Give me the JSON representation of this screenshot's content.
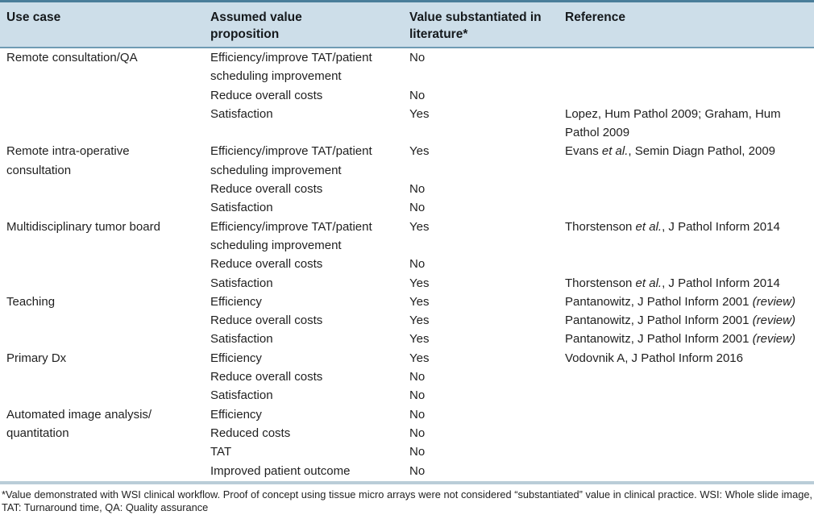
{
  "table": {
    "headers": {
      "use_case": "Use case",
      "proposition": "Assumed value proposition",
      "substantiated": "Value substantiated in literature*",
      "reference": "Reference"
    },
    "groups": [
      {
        "use_case": "Remote consultation/QA",
        "rows": [
          {
            "proposition": "Efficiency/improve TAT/patient\nscheduling improvement",
            "substantiated": "No",
            "reference": []
          },
          {
            "proposition": "Reduce overall costs",
            "substantiated": "No",
            "reference": []
          },
          {
            "proposition": "Satisfaction",
            "substantiated": "Yes",
            "reference": [
              {
                "t": "Lopez, Hum Pathol 2009; Graham, Hum\nPathol 2009",
                "i": false
              }
            ]
          }
        ]
      },
      {
        "use_case": "Remote intra-operative\nconsultation",
        "rows": [
          {
            "proposition": "Efficiency/improve TAT/patient\nscheduling improvement",
            "substantiated": "Yes",
            "reference": [
              {
                "t": "Evans ",
                "i": false
              },
              {
                "t": "et al.",
                "i": true
              },
              {
                "t": ", Semin Diagn Pathol, 2009",
                "i": false
              }
            ]
          },
          {
            "proposition": "Reduce overall costs",
            "substantiated": "No",
            "reference": []
          },
          {
            "proposition": "Satisfaction",
            "substantiated": "No",
            "reference": []
          }
        ]
      },
      {
        "use_case": "Multidisciplinary tumor board",
        "rows": [
          {
            "proposition": "Efficiency/improve TAT/patient\nscheduling improvement",
            "substantiated": "Yes",
            "reference": [
              {
                "t": "Thorstenson ",
                "i": false
              },
              {
                "t": "et al.",
                "i": true
              },
              {
                "t": ", J Pathol Inform 2014",
                "i": false
              }
            ]
          },
          {
            "proposition": "Reduce overall costs",
            "substantiated": "No",
            "reference": []
          },
          {
            "proposition": "Satisfaction",
            "substantiated": "Yes",
            "reference": [
              {
                "t": "Thorstenson ",
                "i": false
              },
              {
                "t": "et al.",
                "i": true
              },
              {
                "t": ", J Pathol Inform 2014",
                "i": false
              }
            ]
          }
        ]
      },
      {
        "use_case": "Teaching",
        "rows": [
          {
            "proposition": "Efficiency",
            "substantiated": "Yes",
            "reference": [
              {
                "t": "Pantanowitz, J Pathol Inform 2001 ",
                "i": false
              },
              {
                "t": "(review)",
                "i": true
              }
            ]
          },
          {
            "proposition": "Reduce overall costs",
            "substantiated": "Yes",
            "reference": [
              {
                "t": "Pantanowitz, J Pathol Inform 2001 ",
                "i": false
              },
              {
                "t": "(review)",
                "i": true
              }
            ]
          },
          {
            "proposition": "Satisfaction",
            "substantiated": "Yes",
            "reference": [
              {
                "t": "Pantanowitz, J Pathol Inform 2001 ",
                "i": false
              },
              {
                "t": "(review)",
                "i": true
              }
            ]
          }
        ]
      },
      {
        "use_case": "Primary Dx",
        "rows": [
          {
            "proposition": "Efficiency",
            "substantiated": "Yes",
            "reference": [
              {
                "t": "Vodovnik A, J Pathol Inform 2016",
                "i": false
              }
            ]
          },
          {
            "proposition": "Reduce overall costs",
            "substantiated": "No",
            "reference": []
          },
          {
            "proposition": "Satisfaction",
            "substantiated": "No",
            "reference": []
          }
        ]
      },
      {
        "use_case": "Automated image analysis/\nquantitation",
        "rows": [
          {
            "proposition": "Efficiency",
            "substantiated": "No",
            "reference": []
          },
          {
            "proposition": "Reduced costs",
            "substantiated": "No",
            "reference": []
          },
          {
            "proposition": "TAT",
            "substantiated": "No",
            "reference": []
          },
          {
            "proposition": "Improved patient outcome",
            "substantiated": "No",
            "reference": []
          }
        ]
      }
    ]
  },
  "footnote": "*Value demonstrated with WSI clinical workflow. Proof of concept using tissue micro arrays were not considered “substantiated” value in clinical practice. WSI: Whole slide image, TAT: Turnaround time, QA: Quality assurance",
  "colors": {
    "header_bg": "#cddee9",
    "top_rule": "#4a7e9a",
    "header_rule": "#6f9cb4",
    "footnote_rule": "#bacdd8"
  }
}
